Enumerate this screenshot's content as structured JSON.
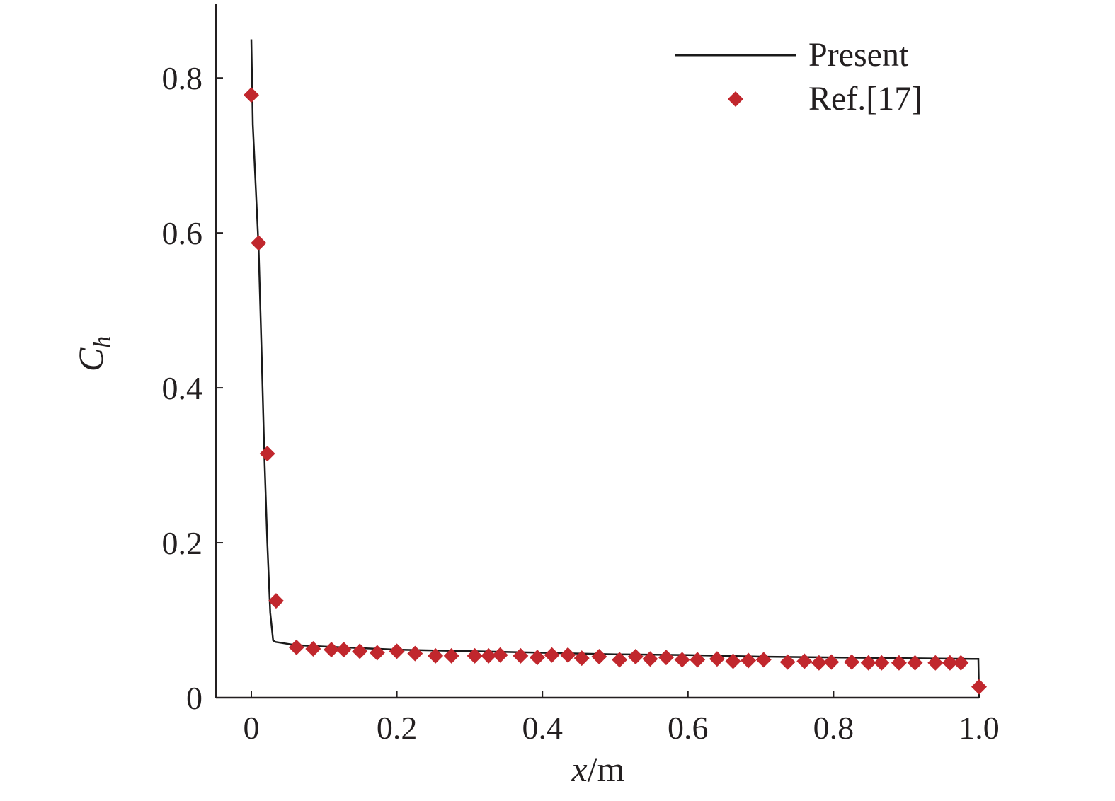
{
  "chart_data": {
    "type": "line",
    "title": "",
    "xlabel_italic": "x",
    "xlabel_unit": "/m",
    "ylabel_main": "C",
    "ylabel_sub": "h",
    "xlim": [
      0,
      1.0
    ],
    "ylim": [
      0,
      0.9
    ],
    "x_ticks": [
      0,
      0.2,
      0.4,
      0.6,
      0.8,
      1.0
    ],
    "x_tick_labels": [
      "0",
      "0.2",
      "0.4",
      "0.6",
      "0.8",
      "1.0"
    ],
    "y_ticks": [
      0,
      0.2,
      0.4,
      0.6,
      0.8
    ],
    "y_tick_labels": [
      "0",
      "0.2",
      "0.4",
      "0.6",
      "0.8"
    ],
    "grid": false,
    "legend_position": "top-right",
    "colors": {
      "line": "#1a1a1a",
      "marker": "#c1272d",
      "axis": "#231f20"
    },
    "series": [
      {
        "name": "Present",
        "kind": "line",
        "x": [
          0,
          0.002,
          0.006,
          0.01,
          0.014,
          0.018,
          0.022,
          0.026,
          0.03,
          0.033,
          0.04,
          0.06,
          0.1,
          0.2,
          0.3,
          0.4,
          0.5,
          0.6,
          0.7,
          0.8,
          0.9,
          0.99,
          0.999,
          1.0
        ],
        "y": [
          0.85,
          0.74,
          0.66,
          0.58,
          0.45,
          0.31,
          0.2,
          0.11,
          0.074,
          0.072,
          0.071,
          0.068,
          0.066,
          0.062,
          0.06,
          0.058,
          0.056,
          0.055,
          0.053,
          0.052,
          0.051,
          0.05,
          0.05,
          0.0
        ]
      },
      {
        "name": "Ref.[17]",
        "kind": "scatter",
        "marker": "diamond",
        "x": [
          0.0,
          0.01,
          0.022,
          0.034,
          0.062,
          0.085,
          0.11,
          0.127,
          0.149,
          0.173,
          0.2,
          0.225,
          0.253,
          0.275,
          0.307,
          0.326,
          0.342,
          0.37,
          0.393,
          0.413,
          0.435,
          0.454,
          0.478,
          0.506,
          0.528,
          0.548,
          0.57,
          0.592,
          0.613,
          0.64,
          0.662,
          0.683,
          0.704,
          0.737,
          0.76,
          0.78,
          0.797,
          0.825,
          0.848,
          0.866,
          0.89,
          0.912,
          0.94,
          0.96,
          0.975,
          1.0
        ],
        "y": [
          0.778,
          0.587,
          0.315,
          0.125,
          0.065,
          0.063,
          0.062,
          0.062,
          0.06,
          0.058,
          0.06,
          0.057,
          0.054,
          0.054,
          0.054,
          0.054,
          0.055,
          0.054,
          0.052,
          0.055,
          0.055,
          0.051,
          0.053,
          0.049,
          0.053,
          0.05,
          0.052,
          0.049,
          0.049,
          0.05,
          0.047,
          0.048,
          0.049,
          0.046,
          0.047,
          0.045,
          0.046,
          0.046,
          0.045,
          0.045,
          0.045,
          0.045,
          0.045,
          0.045,
          0.045,
          0.014
        ]
      }
    ]
  }
}
